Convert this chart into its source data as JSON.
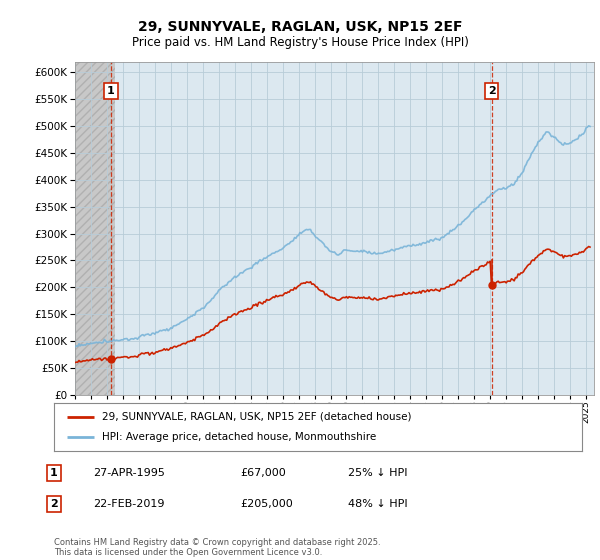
{
  "title": "29, SUNNYVALE, RAGLAN, USK, NP15 2EF",
  "subtitle": "Price paid vs. HM Land Registry's House Price Index (HPI)",
  "legend_line1": "29, SUNNYVALE, RAGLAN, USK, NP15 2EF (detached house)",
  "legend_line2": "HPI: Average price, detached house, Monmouthshire",
  "annotation1_date": "27-APR-1995",
  "annotation1_price": "£67,000",
  "annotation1_hpi": "25% ↓ HPI",
  "annotation2_date": "22-FEB-2019",
  "annotation2_price": "£205,000",
  "annotation2_hpi": "48% ↓ HPI",
  "footer": "Contains HM Land Registry data © Crown copyright and database right 2025.\nThis data is licensed under the Open Government Licence v3.0.",
  "ylim": [
    0,
    620000
  ],
  "yticks": [
    0,
    50000,
    100000,
    150000,
    200000,
    250000,
    300000,
    350000,
    400000,
    450000,
    500000,
    550000,
    600000
  ],
  "hpi_color": "#7ab4d8",
  "price_color": "#cc2200",
  "vline_color": "#cc2200",
  "plot_bg_color": "#ffffff",
  "hatch_bg_color": "#e8e8e8",
  "grid_color": "#c8d8e8"
}
